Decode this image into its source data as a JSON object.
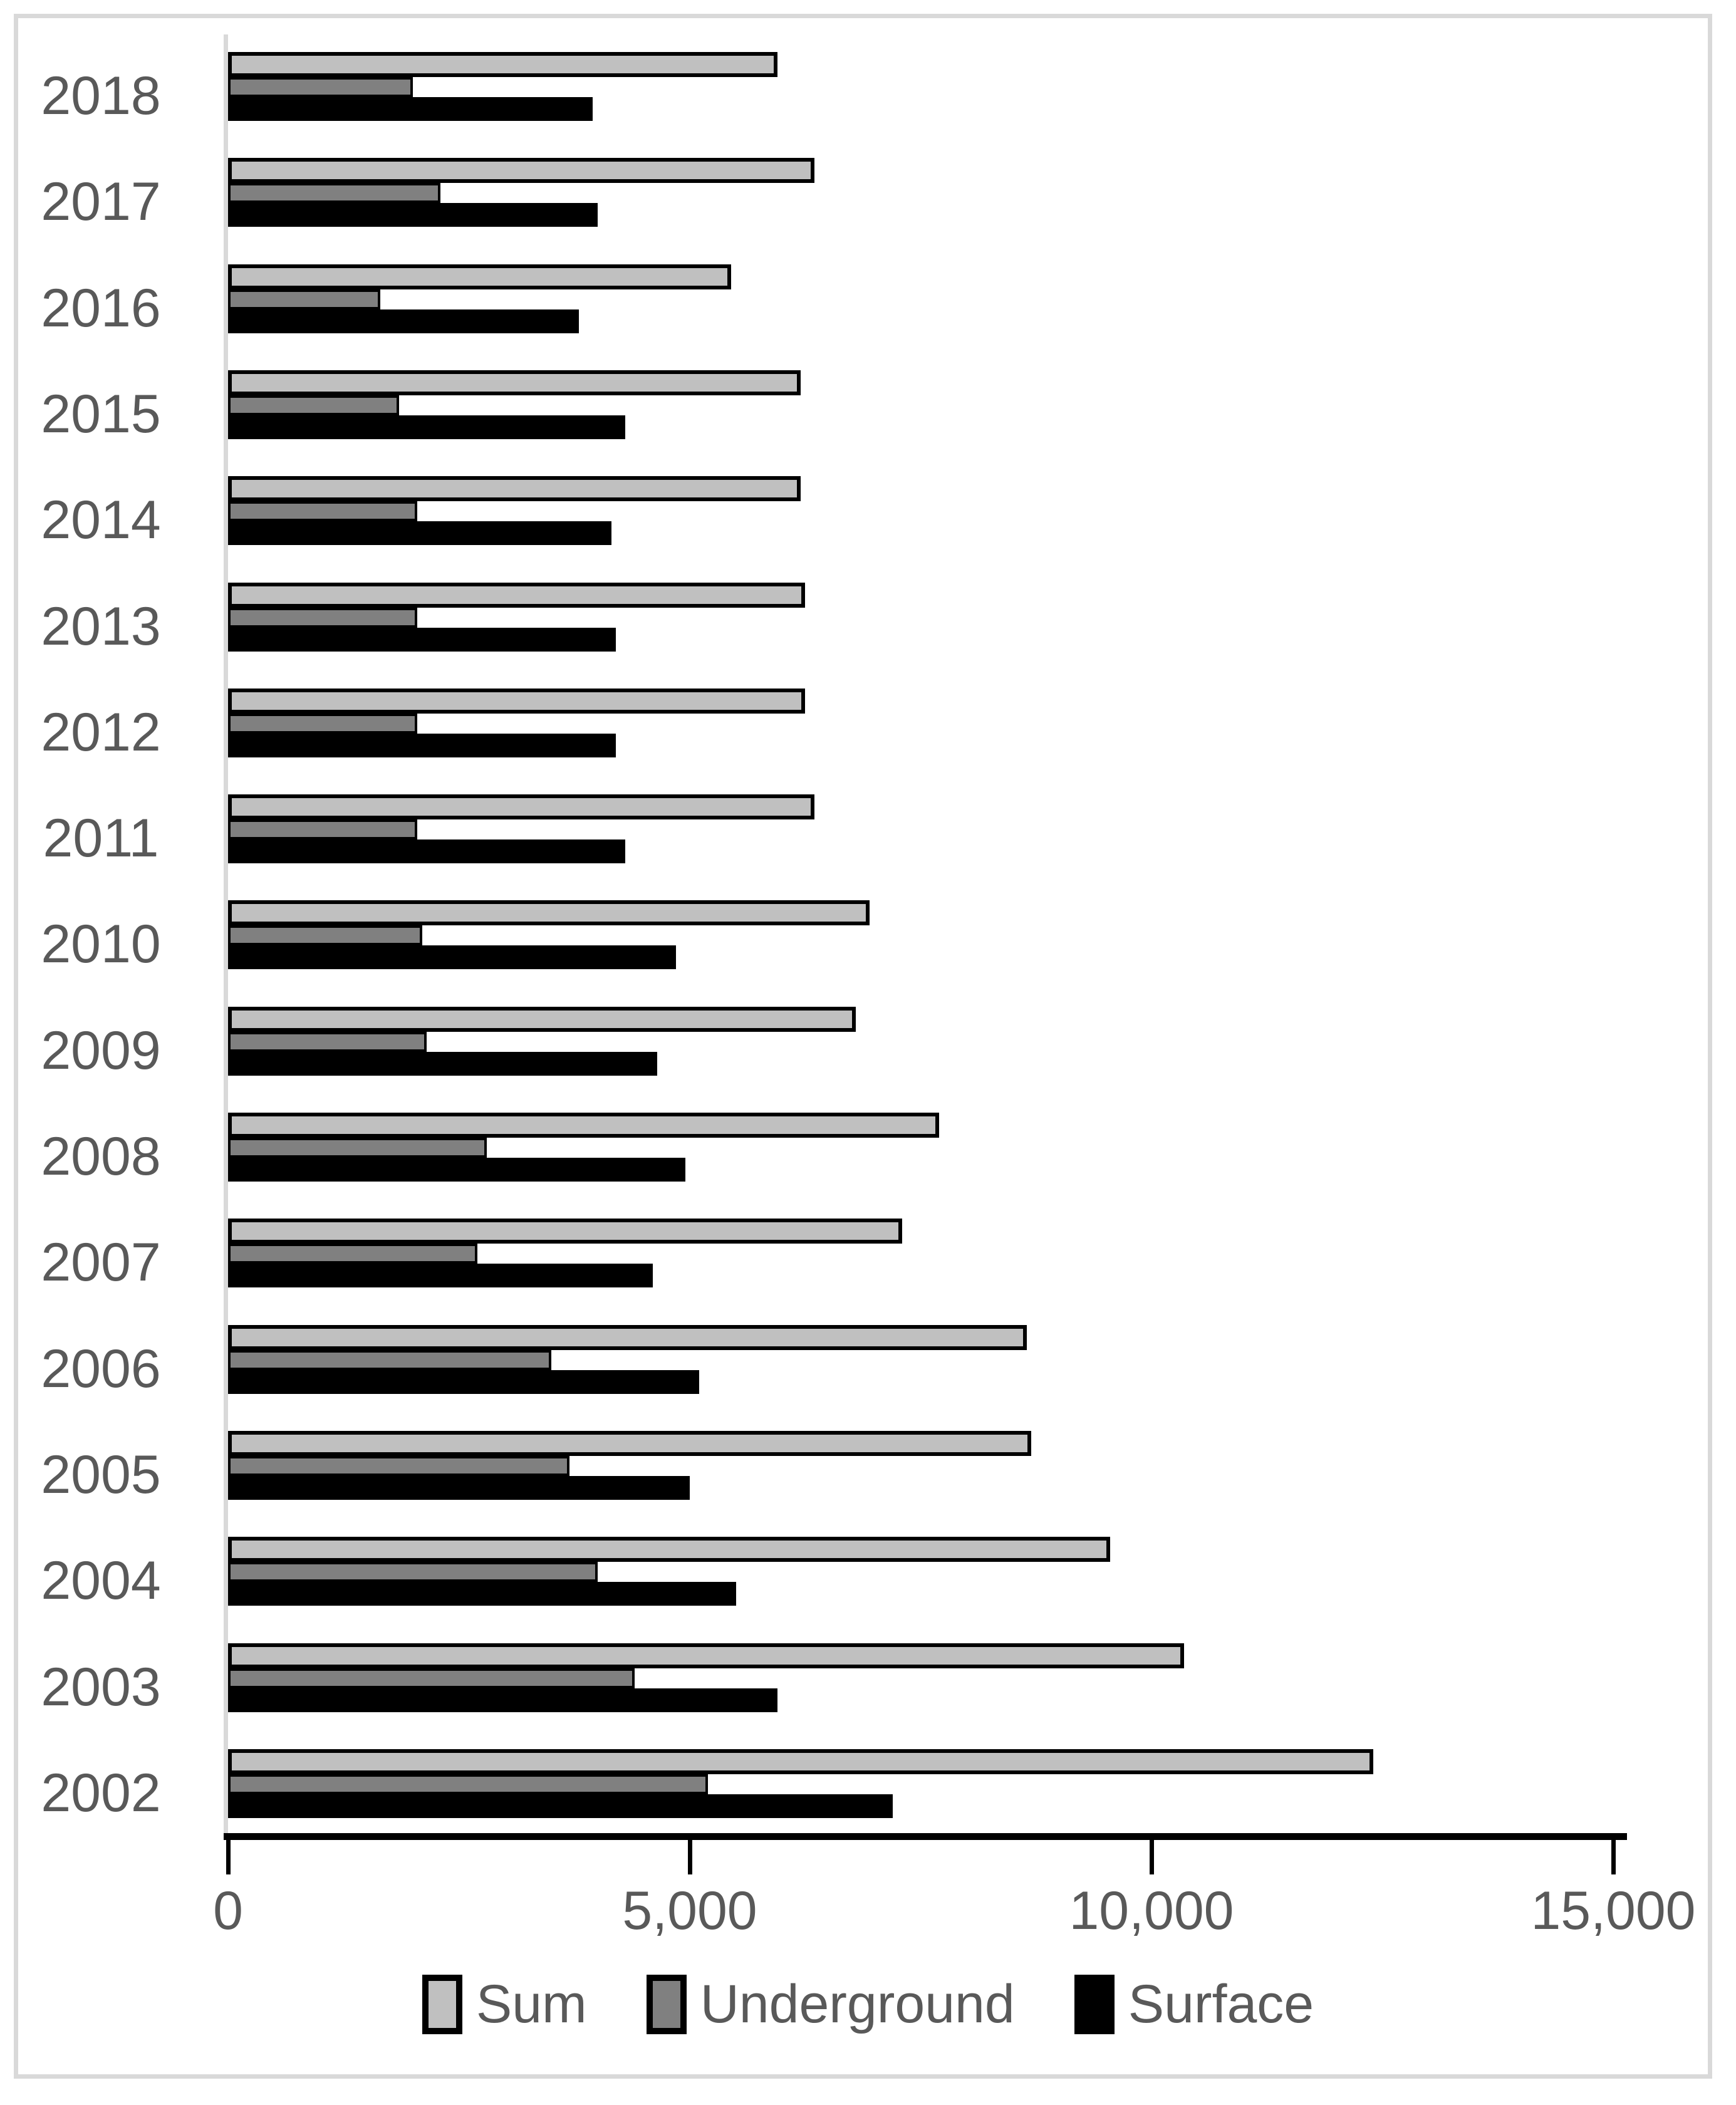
{
  "chart_data": {
    "type": "bar",
    "orientation": "horizontal",
    "title": "",
    "xlabel": "",
    "ylabel": "",
    "categories": [
      "2018",
      "2017",
      "2016",
      "2015",
      "2014",
      "2013",
      "2012",
      "2011",
      "2010",
      "2009",
      "2008",
      "2007",
      "2006",
      "2005",
      "2004",
      "2003",
      "2002"
    ],
    "series": [
      {
        "name": "Sum",
        "color": "#c0c0c0",
        "border_color": "#000000",
        "values": [
          5950,
          6350,
          5450,
          6200,
          6200,
          6250,
          6250,
          6350,
          6950,
          6800,
          7700,
          7300,
          8650,
          8700,
          9550,
          10350,
          12400
        ]
      },
      {
        "name": "Underground",
        "color": "#808080",
        "border_color": "#000000",
        "values": [
          2000,
          2300,
          1650,
          1850,
          2050,
          2050,
          2050,
          2050,
          2100,
          2150,
          2800,
          2700,
          3500,
          3700,
          4000,
          4400,
          5200
        ]
      },
      {
        "name": "Surface",
        "color": "#000000",
        "border_color": "#000000",
        "values": [
          3950,
          4000,
          3800,
          4300,
          4150,
          4200,
          4200,
          4300,
          4850,
          4650,
          4950,
          4600,
          5100,
          5000,
          5500,
          5950,
          7200
        ]
      }
    ],
    "xlim": [
      0,
      15000
    ],
    "x_tick_values": [
      0,
      5000,
      10000,
      15000
    ],
    "x_tick_labels": [
      "0",
      "5,000",
      "10,000",
      "15,000"
    ],
    "grid": false,
    "legend_position": "bottom"
  },
  "colors": {
    "frame": "#d9d9d9",
    "axis_line": "#000000",
    "category_axis_line": "#d9d9d9",
    "label_text": "#595959",
    "background": "#ffffff"
  },
  "legend": {
    "items": [
      {
        "label": "Sum"
      },
      {
        "label": "Underground"
      },
      {
        "label": "Surface"
      }
    ]
  }
}
